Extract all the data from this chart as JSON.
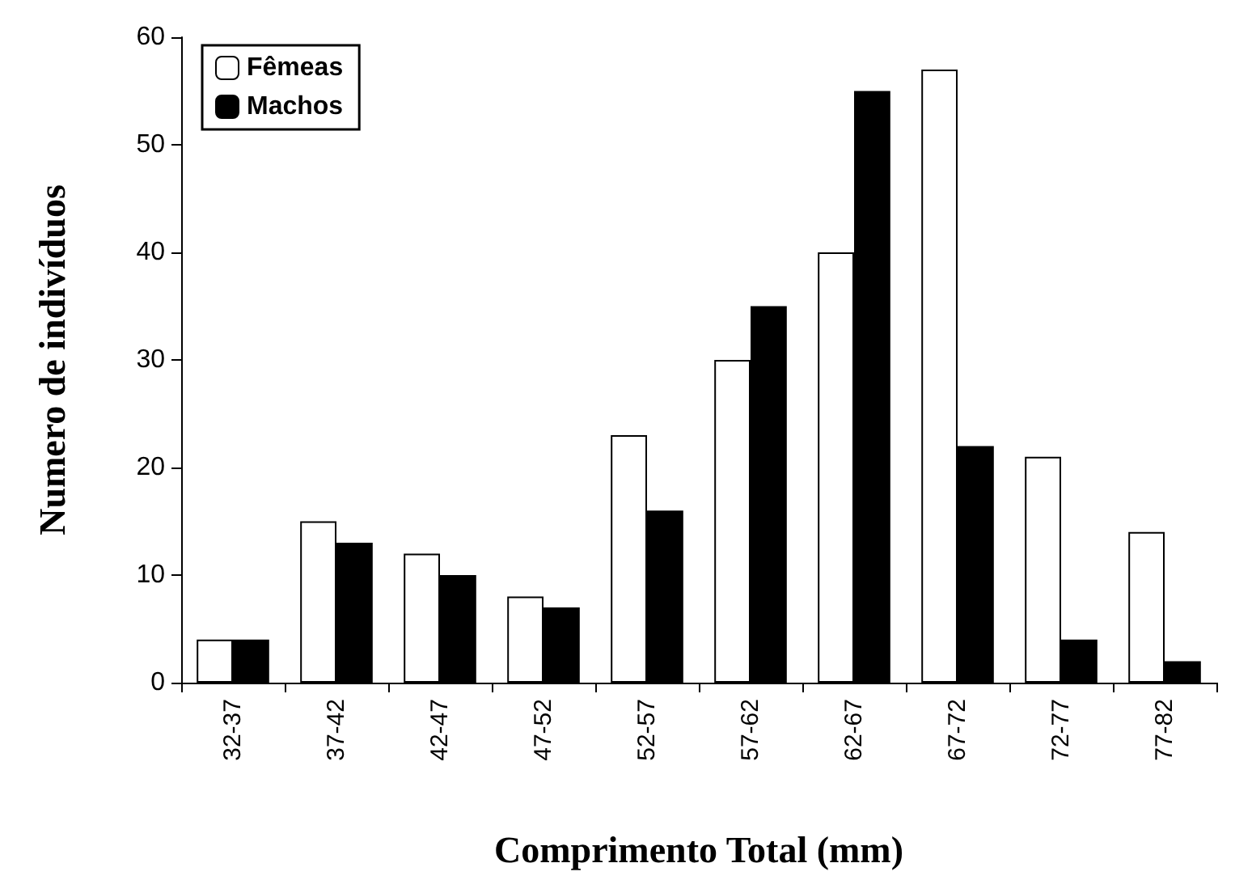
{
  "chart_data": {
    "type": "bar",
    "xlabel": "Comprimento Total (mm)",
    "ylabel": "Numero de indivíduos",
    "categories": [
      "32-37",
      "37-42",
      "42-47",
      "47-52",
      "52-57",
      "57-62",
      "62-67",
      "67-72",
      "72-77",
      "77-82"
    ],
    "series": [
      {
        "name": "Fêmeas",
        "color": "#ffffff",
        "values": [
          4,
          15,
          12,
          8,
          23,
          30,
          40,
          57,
          21,
          14
        ]
      },
      {
        "name": "Machos",
        "color": "#000000",
        "values": [
          4,
          13,
          10,
          7,
          16,
          35,
          55,
          22,
          4,
          2
        ]
      }
    ],
    "ylim": [
      0,
      60
    ],
    "yticks": [
      0,
      10,
      20,
      30,
      40,
      50,
      60
    ],
    "grid": false,
    "legend": "top left"
  }
}
